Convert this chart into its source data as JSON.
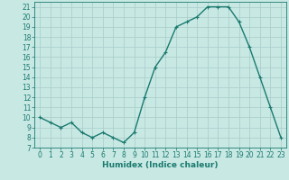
{
  "hours": [
    0,
    1,
    2,
    3,
    4,
    5,
    6,
    7,
    8,
    9,
    10,
    11,
    12,
    13,
    14,
    15,
    16,
    17,
    18,
    19,
    20,
    21,
    22,
    23
  ],
  "values": [
    10,
    9.5,
    9,
    9.5,
    8.5,
    8,
    8.5,
    8,
    7.5,
    8.5,
    12,
    15,
    16.5,
    19,
    19.5,
    20,
    21,
    21,
    21,
    19.5,
    17,
    14,
    11,
    8
  ],
  "line_color": "#1a7a6e",
  "marker": "+",
  "marker_size": 3,
  "bg_color": "#c8e8e4",
  "grid_color": "#a8ccc8",
  "xlabel": "Humidex (Indice chaleur)",
  "ylim": [
    7,
    21.5
  ],
  "xlim": [
    -0.5,
    23.5
  ],
  "yticks": [
    7,
    8,
    9,
    10,
    11,
    12,
    13,
    14,
    15,
    16,
    17,
    18,
    19,
    20,
    21
  ],
  "xticks": [
    0,
    1,
    2,
    3,
    4,
    5,
    6,
    7,
    8,
    9,
    10,
    11,
    12,
    13,
    14,
    15,
    16,
    17,
    18,
    19,
    20,
    21,
    22,
    23
  ],
  "tick_fontsize": 5.5,
  "xlabel_fontsize": 6.5,
  "line_width": 1.0
}
